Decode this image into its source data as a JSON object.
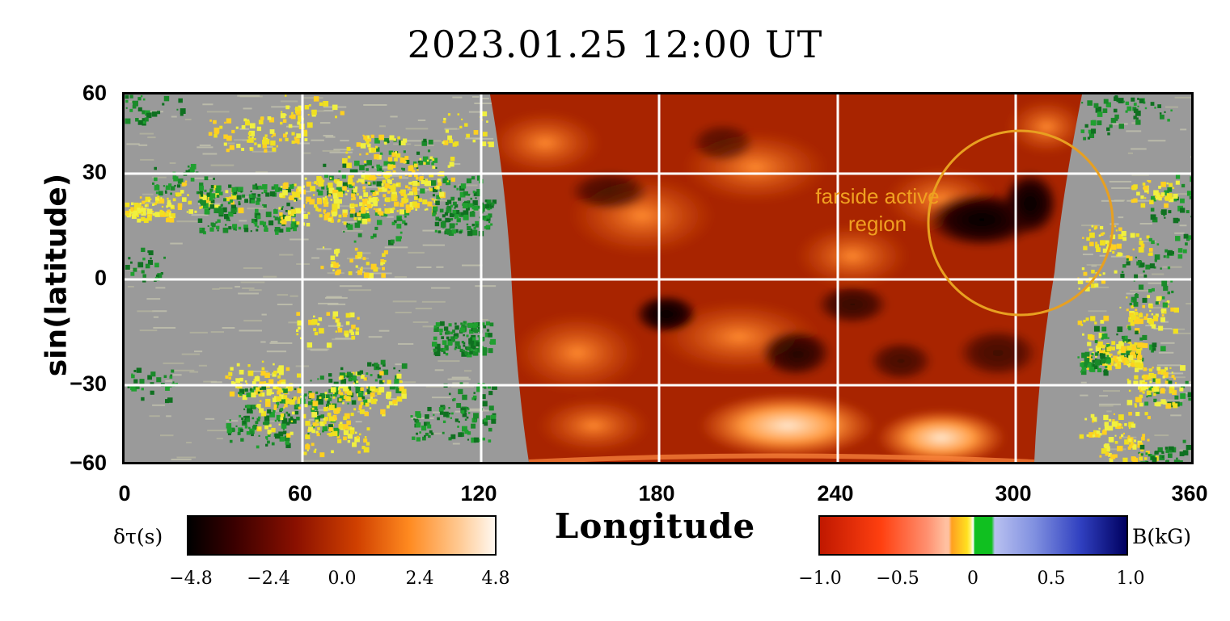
{
  "title": "2023.01.25  12:00  UT",
  "y_axis": {
    "label": "sin(latitude)",
    "ticks": [
      "60",
      "30",
      "0",
      "−30",
      "−60"
    ]
  },
  "x_axis": {
    "label": "Longitude",
    "ticks": [
      "0",
      "60",
      "120",
      "180",
      "240",
      "300",
      "360"
    ]
  },
  "annotation": {
    "line1": "farside active",
    "line2": "region",
    "color": "#f0a020"
  },
  "colorbar_travel_time": {
    "label": "δτ(s)",
    "ticks": [
      "−4.8",
      "−2.4",
      "0.0",
      "2.4",
      "4.8"
    ],
    "range": [
      -4.8,
      4.8
    ]
  },
  "colorbar_field": {
    "label": "B(kG)",
    "ticks": [
      "−1.0",
      "−0.5",
      "0",
      "0.5",
      "1.0"
    ],
    "range": [
      -1.0,
      1.0
    ]
  },
  "colors": {
    "near_side_background": "#9a9a9a",
    "grid": "#ffffff",
    "farside_dark": "#3a0000",
    "farside_mid": "#b02a00",
    "farside_bright": "#ffd8b0",
    "positive_field": "#f0e020",
    "negative_field": "#1a8a2a",
    "circle": "#e8a020"
  }
}
